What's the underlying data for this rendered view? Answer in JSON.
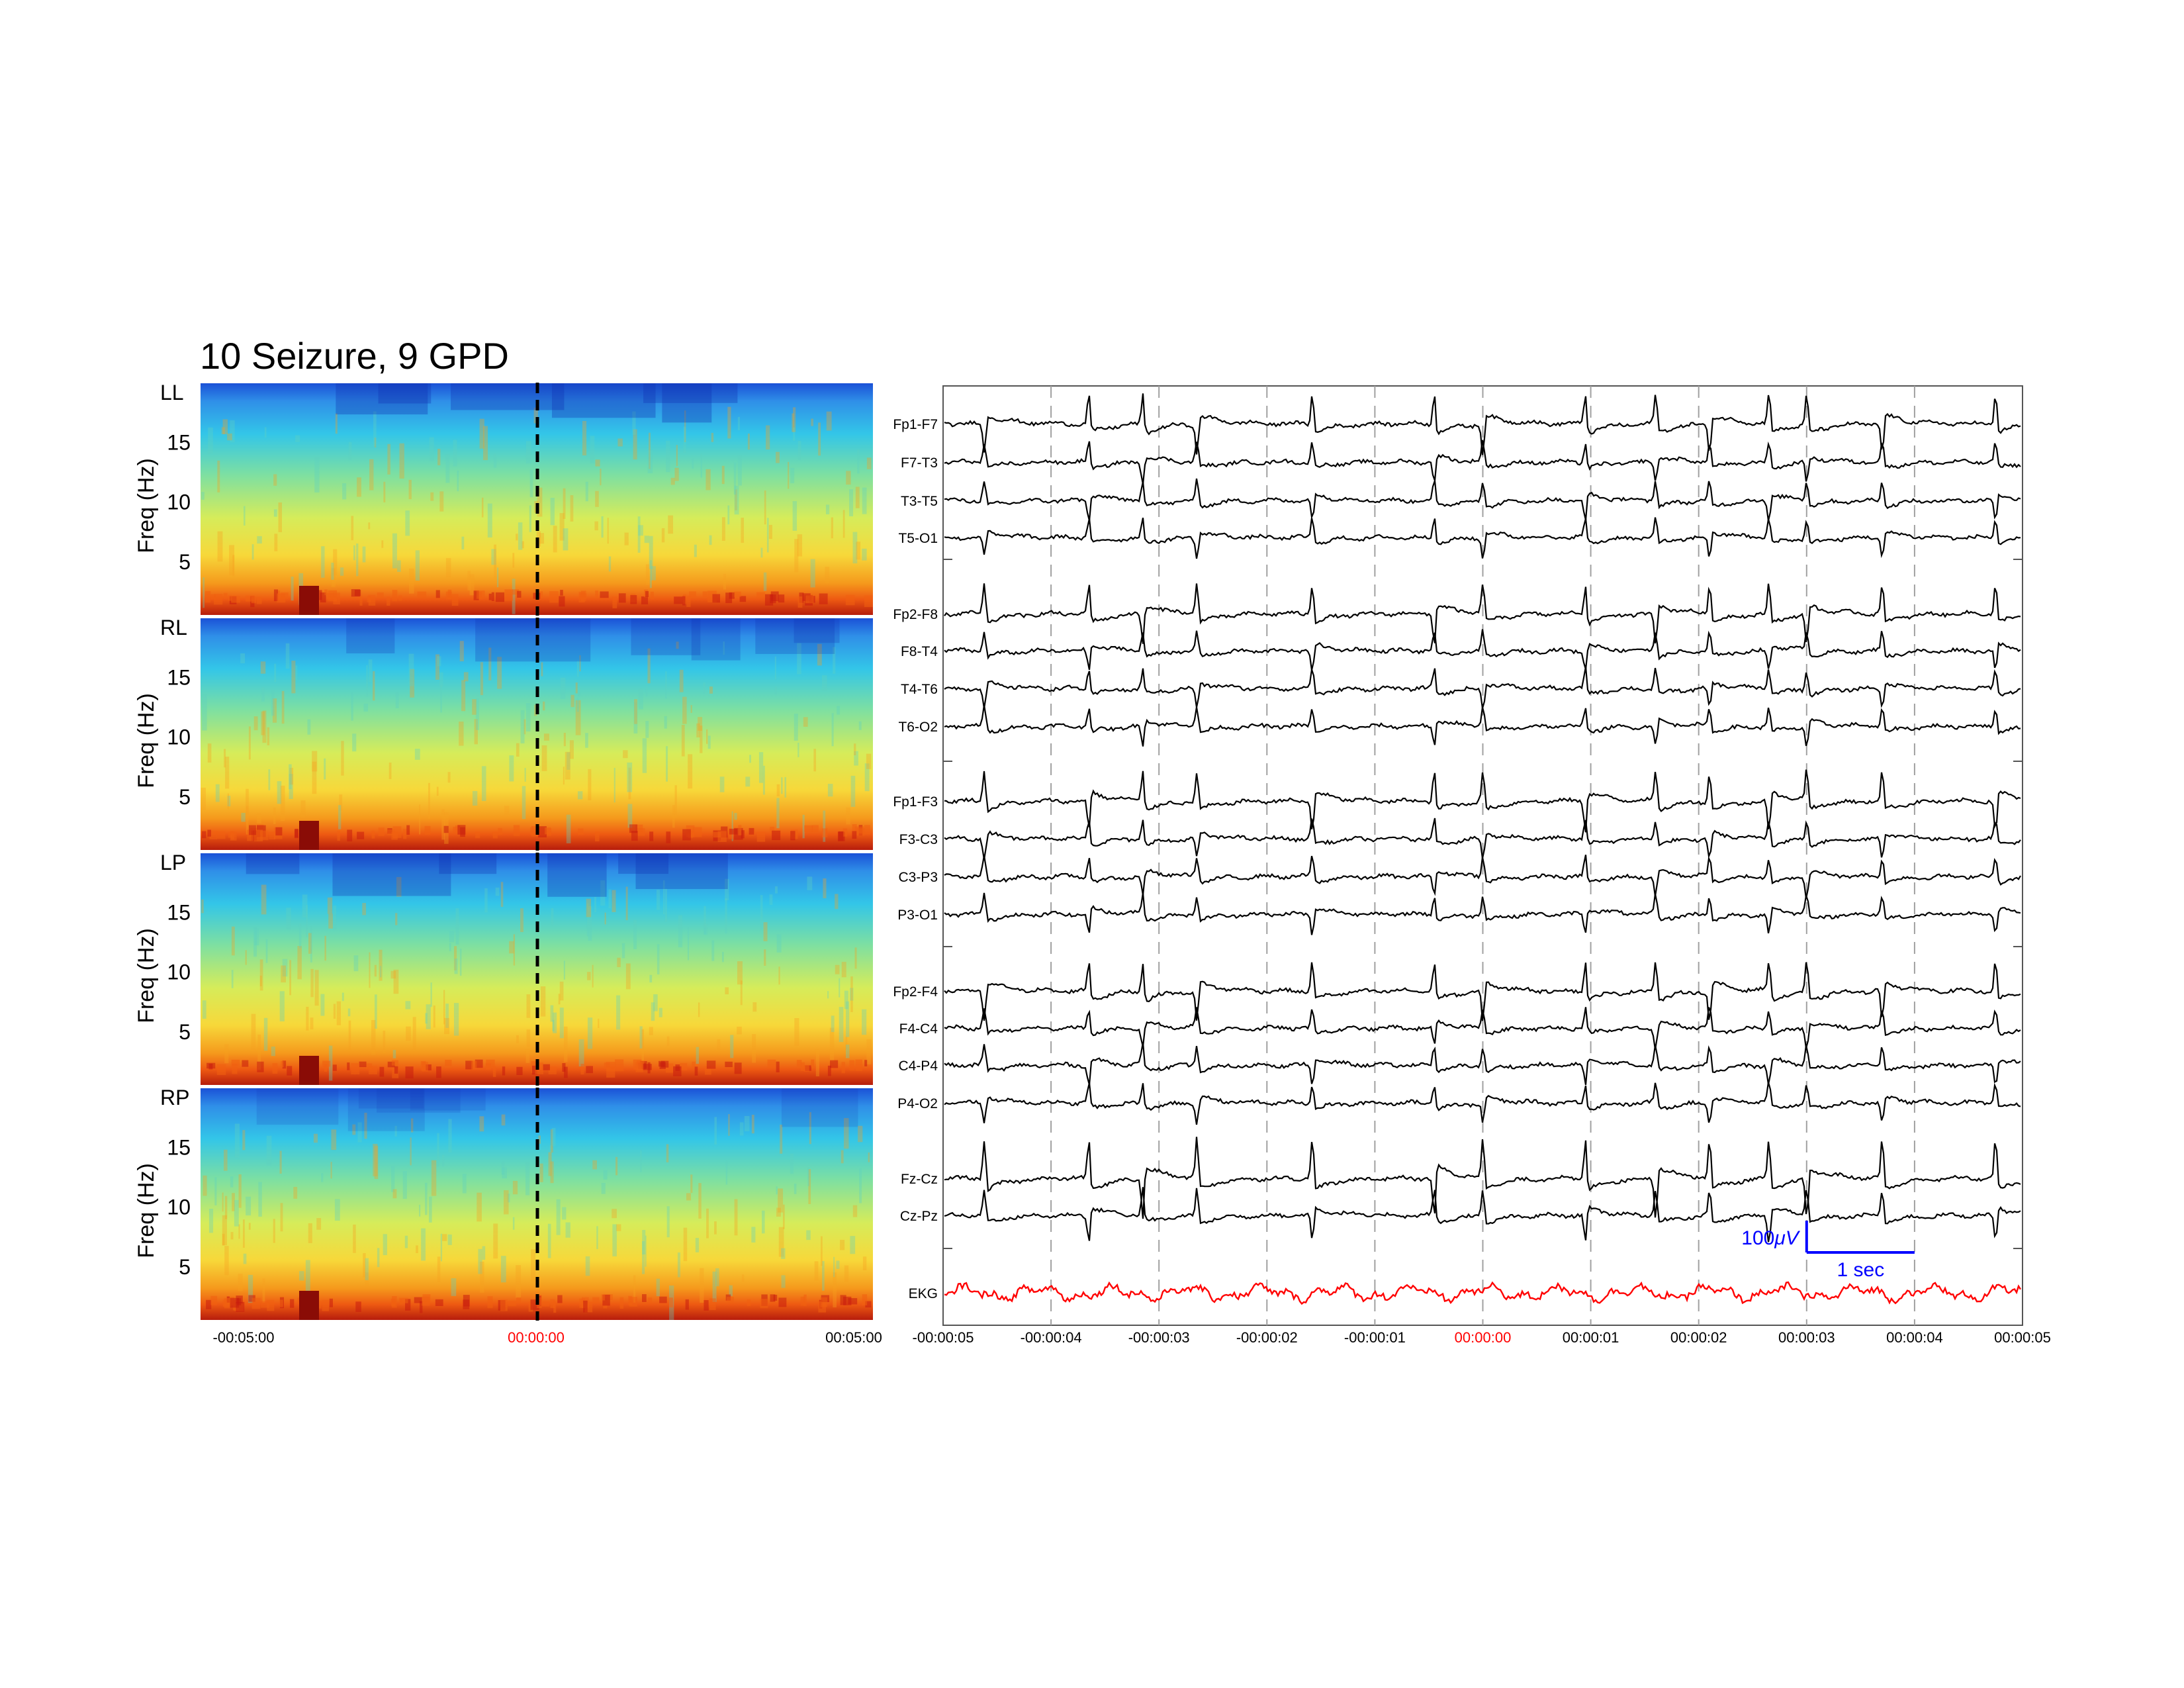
{
  "title": "10 Seizure, 9 GPD",
  "colors": {
    "trace": "#000000",
    "ekg": "#ff0000",
    "center_time": "#ff0000",
    "scale_bar": "#0000ff",
    "grid": "#a0a0a0"
  },
  "spectrograms": {
    "ylabel": "Freq (Hz)",
    "yticks": [
      5,
      10,
      15
    ],
    "ylim": [
      0.5,
      20
    ],
    "panels": [
      "LL",
      "RL",
      "LP",
      "RP"
    ],
    "xticks": [
      "-00:05:00",
      "00:00:00",
      "00:05:00"
    ],
    "center_tick": "00:00:00",
    "colormap": "jet"
  },
  "chart_data": [
    {
      "type": "heatmap",
      "name": "spectrogram",
      "panels": [
        "LL",
        "RL",
        "LP",
        "RP"
      ],
      "ylabel": "Freq (Hz)",
      "ylim": [
        0.5,
        20
      ],
      "yticks": [
        5,
        10,
        15
      ],
      "xlim_minutes": [
        -5,
        5
      ],
      "xtick_labels": [
        "-00:05:00",
        "00:00:00",
        "00:05:00"
      ],
      "marker_at_minutes": 0,
      "colormap": "jet"
    },
    {
      "type": "line",
      "name": "eeg",
      "xlim_seconds": [
        -5,
        5
      ],
      "xtick_labels": [
        "-00:00:05",
        "-00:00:04",
        "-00:00:03",
        "-00:00:02",
        "-00:00:01",
        "00:00:00",
        "00:00:01",
        "00:00:02",
        "00:00:03",
        "00:00:04",
        "00:00:05"
      ],
      "discharge_times_seconds": [
        -4.62,
        -3.65,
        -3.15,
        -2.65,
        -1.58,
        -0.45,
        0.0,
        0.95,
        1.6,
        2.1,
        2.65,
        3.0,
        3.7,
        4.75
      ],
      "channel_groups": [
        [
          "Fp1-F7",
          "F7-T3",
          "T3-T5",
          "T5-O1"
        ],
        [
          "Fp2-F8",
          "F8-T4",
          "T4-T6",
          "T6-O2"
        ],
        [
          "Fp1-F3",
          "F3-C3",
          "C3-P3",
          "P3-O1"
        ],
        [
          "Fp2-F4",
          "F4-C4",
          "C4-P4",
          "P4-O2"
        ],
        [
          "Fz-Cz",
          "Cz-Pz"
        ],
        [
          "EKG"
        ]
      ],
      "scale_bar": {
        "amplitude": "100μV",
        "duration": "1 sec"
      }
    }
  ],
  "eeg": {
    "channels": [
      "Fp1-F7",
      "F7-T3",
      "T3-T5",
      "T5-O1",
      "Fp2-F8",
      "F8-T4",
      "T4-T6",
      "T6-O2",
      "Fp1-F3",
      "F3-C3",
      "C3-P3",
      "P3-O1",
      "Fp2-F4",
      "F4-C4",
      "C4-P4",
      "P4-O2",
      "Fz-Cz",
      "Cz-Pz",
      "EKG"
    ],
    "xticks": [
      "-00:00:05",
      "-00:00:04",
      "-00:00:03",
      "-00:00:02",
      "-00:00:01",
      "00:00:00",
      "00:00:01",
      "00:00:02",
      "00:00:03",
      "00:00:04",
      "00:00:05"
    ],
    "center_tick": "00:00:00",
    "scale_amplitude_label": "100",
    "scale_amplitude_unit": "μV",
    "scale_time_label": "1 sec"
  }
}
